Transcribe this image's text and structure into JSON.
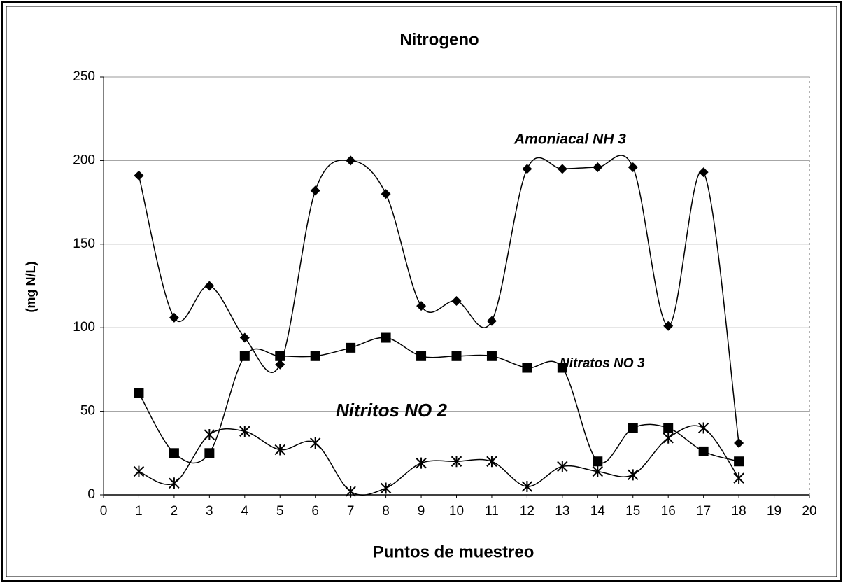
{
  "chart_data": {
    "type": "line",
    "title": "Nitrogeno",
    "xlabel": "Puntos de muestreo",
    "ylabel": "(mg N/L)",
    "x": [
      1,
      2,
      3,
      4,
      5,
      6,
      7,
      8,
      9,
      10,
      11,
      12,
      13,
      14,
      15,
      16,
      17,
      18
    ],
    "series": [
      {
        "name": "Amoniacal NH 3",
        "color": "#000000",
        "marker": "diamond",
        "values": [
          191,
          106,
          125,
          94,
          78,
          182,
          200,
          180,
          113,
          116,
          104,
          195,
          195,
          196,
          196,
          101,
          193,
          31
        ]
      },
      {
        "name": "Nitratos NO 3",
        "color": "#000000",
        "marker": "square",
        "values": [
          61,
          25,
          25,
          83,
          83,
          83,
          88,
          94,
          83,
          83,
          83,
          76,
          76,
          20,
          40,
          40,
          26,
          20
        ]
      },
      {
        "name": "Nitritos NO 2",
        "color": "#000000",
        "marker": "asterisk",
        "values": [
          14,
          7,
          36,
          38,
          27,
          31,
          2,
          4,
          19,
          20,
          20,
          5,
          17,
          14,
          12,
          34,
          40,
          10
        ]
      }
    ],
    "xlim": [
      0,
      20
    ],
    "xticks": [
      0,
      1,
      2,
      3,
      4,
      5,
      6,
      7,
      8,
      9,
      10,
      11,
      12,
      13,
      14,
      15,
      16,
      17,
      18,
      19,
      20
    ],
    "ylim": [
      0,
      250
    ],
    "yticks": [
      0,
      50,
      100,
      150,
      200,
      250
    ],
    "grid": true,
    "smooth": true
  }
}
